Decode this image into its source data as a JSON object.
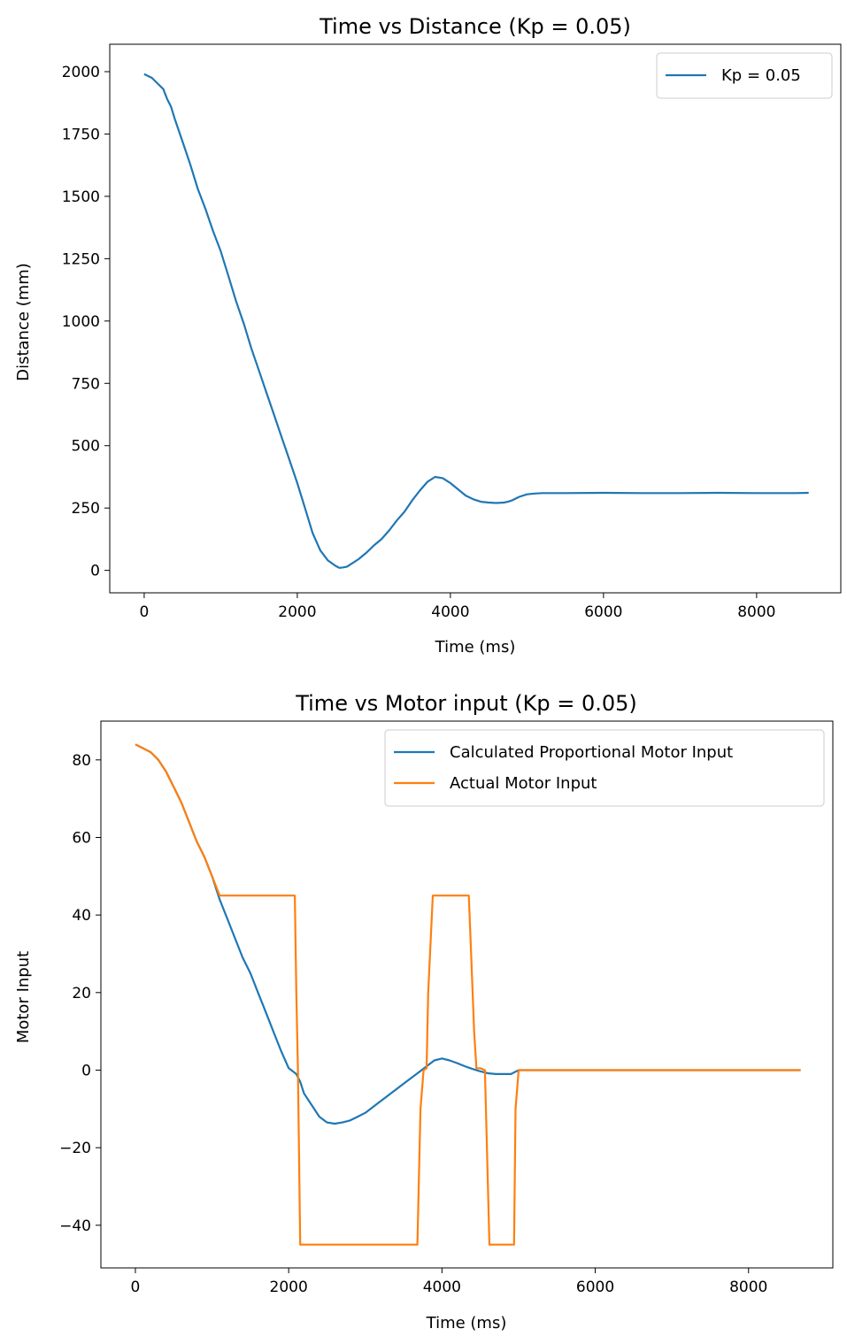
{
  "chart_data": [
    {
      "type": "line",
      "title": "Time vs Distance (Kp = 0.05)",
      "xlabel": "Time (ms)",
      "ylabel": "Distance (mm)",
      "xlim": [
        -450,
        9100
      ],
      "ylim": [
        -90,
        2110
      ],
      "xticks": [
        0,
        2000,
        4000,
        6000,
        8000
      ],
      "yticks": [
        0,
        250,
        500,
        750,
        1000,
        1250,
        1500,
        1750,
        2000
      ],
      "xtick_labels": [
        "0",
        "2000",
        "4000",
        "6000",
        "8000"
      ],
      "ytick_labels": [
        "0",
        "250",
        "500",
        "750",
        "1000",
        "1250",
        "1500",
        "1750",
        "2000"
      ],
      "grid": false,
      "legend_position": "top-right",
      "series": [
        {
          "name": "Kp = 0.05",
          "color": "#1f77b4",
          "x": [
            0,
            100,
            200,
            250,
            300,
            350,
            400,
            500,
            600,
            700,
            800,
            900,
            1000,
            1100,
            1200,
            1300,
            1400,
            1500,
            1600,
            1700,
            1800,
            1900,
            2000,
            2100,
            2200,
            2300,
            2400,
            2500,
            2550,
            2600,
            2650,
            2700,
            2800,
            2900,
            3000,
            3100,
            3200,
            3300,
            3400,
            3500,
            3600,
            3700,
            3800,
            3900,
            4000,
            4100,
            4200,
            4300,
            4400,
            4500,
            4600,
            4700,
            4750,
            4800,
            4900,
            5000,
            5100,
            5200,
            5500,
            6000,
            6500,
            7000,
            7500,
            8000,
            8500,
            8680
          ],
          "y": [
            1990,
            1975,
            1945,
            1930,
            1890,
            1860,
            1810,
            1720,
            1630,
            1530,
            1450,
            1360,
            1280,
            1180,
            1080,
            990,
            890,
            800,
            710,
            620,
            530,
            440,
            350,
            250,
            150,
            80,
            40,
            18,
            10,
            12,
            15,
            25,
            45,
            70,
            100,
            125,
            160,
            200,
            235,
            280,
            320,
            355,
            375,
            370,
            350,
            325,
            300,
            285,
            275,
            272,
            270,
            272,
            275,
            280,
            295,
            305,
            308,
            310,
            310,
            311,
            310,
            310,
            311,
            310,
            310,
            311
          ]
        }
      ]
    },
    {
      "type": "line",
      "title": "Time vs Motor input (Kp = 0.05)",
      "xlabel": "Time (ms)",
      "ylabel": "Motor Input",
      "xlim": [
        -450,
        9100
      ],
      "ylim": [
        -51,
        90
      ],
      "xticks": [
        0,
        2000,
        4000,
        6000,
        8000
      ],
      "yticks": [
        -40,
        -20,
        0,
        20,
        40,
        60,
        80
      ],
      "xtick_labels": [
        "0",
        "2000",
        "4000",
        "6000",
        "8000"
      ],
      "ytick_labels": [
        "−40",
        "−20",
        "0",
        "20",
        "40",
        "60",
        "80"
      ],
      "grid": false,
      "legend_position": "top-right",
      "series": [
        {
          "name": "Calculated Proportional Motor Input",
          "color": "#1f77b4",
          "x": [
            0,
            50,
            100,
            200,
            300,
            400,
            500,
            600,
            700,
            800,
            900,
            1000,
            1100,
            1200,
            1300,
            1400,
            1500,
            1600,
            1700,
            1800,
            1900,
            2000,
            2100,
            2150,
            2200,
            2300,
            2400,
            2500,
            2600,
            2700,
            2800,
            2900,
            3000,
            3100,
            3200,
            3300,
            3400,
            3500,
            3600,
            3700,
            3800,
            3900,
            4000,
            4100,
            4200,
            4300,
            4400,
            4500,
            4600,
            4700,
            4800,
            4900,
            4950,
            5000,
            5500,
            6000,
            7000,
            8000,
            8680
          ],
          "y": [
            84,
            83.5,
            83,
            82,
            80,
            77,
            73,
            69,
            64,
            59,
            55,
            50,
            44,
            39,
            34,
            29,
            25,
            20,
            15,
            10,
            5,
            0.5,
            -1,
            -3,
            -6,
            -9,
            -12,
            -13.5,
            -13.8,
            -13.5,
            -13,
            -12,
            -11,
            -9.5,
            -8,
            -6.5,
            -5,
            -3.5,
            -2,
            -0.5,
            1,
            2.5,
            3,
            2.5,
            1.8,
            1,
            0.3,
            -0.3,
            -0.8,
            -1,
            -1,
            -1,
            -0.5,
            0,
            0,
            0,
            0,
            0,
            0
          ]
        },
        {
          "name": "Actual Motor Input",
          "color": "#ff7f0e",
          "x": [
            0,
            50,
            100,
            200,
            300,
            400,
            500,
            600,
            700,
            800,
            900,
            1000,
            1100,
            1200,
            1300,
            1400,
            1500,
            1600,
            1700,
            1800,
            1900,
            2000,
            2080,
            2100,
            2120,
            2150,
            2200,
            2500,
            3000,
            3500,
            3680,
            3720,
            3760,
            3800,
            3820,
            3880,
            4000,
            4200,
            4350,
            4380,
            4420,
            4450,
            4500,
            4560,
            4620,
            4650,
            4700,
            4800,
            4880,
            4940,
            4960,
            5000,
            6000,
            7000,
            8000,
            8680
          ],
          "y": [
            84,
            83.5,
            83,
            82,
            80,
            77,
            73,
            69,
            64,
            59,
            55,
            50,
            45,
            45,
            45,
            45,
            45,
            45,
            45,
            45,
            45,
            45,
            45,
            20,
            0.5,
            -45,
            -45,
            -45,
            -45,
            -45,
            -45,
            -10,
            0,
            0.5,
            20,
            45,
            45,
            45,
            45,
            30,
            10,
            0.5,
            0.5,
            0,
            -45,
            -45,
            -45,
            -45,
            -45,
            -45,
            -10,
            0,
            0,
            0,
            0,
            0
          ]
        }
      ]
    }
  ]
}
